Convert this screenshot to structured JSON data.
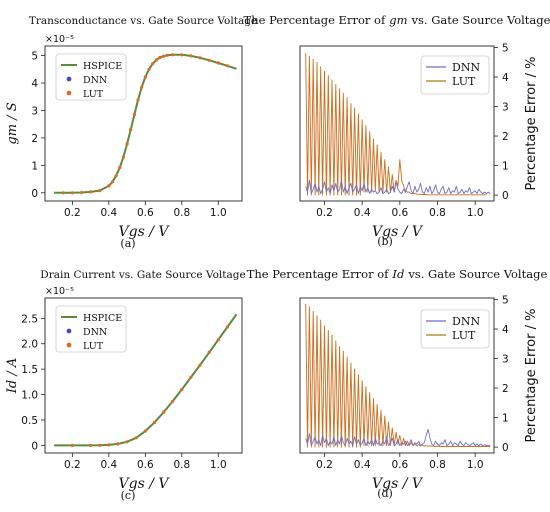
{
  "colors": {
    "hspice": "#5b8a3c",
    "dnn": "#4a4ab5",
    "lut": "#e06a22",
    "lut_line": "#a6801c",
    "dnn_line": "#6f6fc8"
  },
  "chart_data": [
    {
      "id": "a",
      "type": "line",
      "title": "Transconductance vs. Gate Source Voltage",
      "caption": "(a)",
      "xlabel": "Vgs / V",
      "ylabel": "gm / S",
      "exponent_label": "×10⁻⁵",
      "xlim": [
        0.05,
        1.13
      ],
      "ylim": [
        -0.3,
        5.35
      ],
      "xticks": [
        "0.2",
        "0.4",
        "0.6",
        "0.8",
        "1.0"
      ],
      "xtick_values": [
        0.2,
        0.4,
        0.6,
        0.8,
        1.0
      ],
      "yticks": [
        "0",
        "1",
        "2",
        "3",
        "4",
        "5"
      ],
      "ytick_values": [
        0,
        1,
        2,
        3,
        4,
        5
      ],
      "legend_position": "upper-left",
      "legend": [
        "HSPICE",
        "DNN",
        "LUT"
      ],
      "series": [
        {
          "name": "HSPICE",
          "x": [
            0.1,
            0.15,
            0.2,
            0.25,
            0.3,
            0.35,
            0.4,
            0.42,
            0.44,
            0.46,
            0.48,
            0.5,
            0.52,
            0.54,
            0.56,
            0.58,
            0.6,
            0.62,
            0.64,
            0.66,
            0.68,
            0.7,
            0.72,
            0.75,
            0.8,
            0.85,
            0.9,
            0.95,
            1.0,
            1.05,
            1.1
          ],
          "y": [
            0,
            0,
            0,
            0.01,
            0.03,
            0.08,
            0.25,
            0.4,
            0.62,
            0.92,
            1.3,
            1.78,
            2.3,
            2.85,
            3.38,
            3.85,
            4.22,
            4.5,
            4.7,
            4.84,
            4.93,
            4.98,
            5.01,
            5.03,
            5.03,
            4.99,
            4.92,
            4.83,
            4.73,
            4.63,
            4.52
          ]
        }
      ]
    },
    {
      "id": "b",
      "type": "line",
      "title_prefix": "The Percentage Error of",
      "title_symbol": "gm",
      "title_suffix": "vs. Gate Source Voltage",
      "caption": "(b)",
      "xlabel": "Vgs / V",
      "ylabel": "Percentage Error / %",
      "xlim": [
        0.07,
        1.1
      ],
      "ylim": [
        -0.2,
        5.05
      ],
      "xticks": [
        "0.2",
        "0.4",
        "0.6",
        "0.8",
        "1.0"
      ],
      "xtick_values": [
        0.2,
        0.4,
        0.6,
        0.8,
        1.0
      ],
      "yticks": [
        "0",
        "1",
        "2",
        "3",
        "4",
        "5"
      ],
      "ytick_values": [
        0,
        1,
        2,
        3,
        4,
        5
      ],
      "legend_position": "upper-right",
      "legend": [
        "DNN",
        "LUT"
      ],
      "series": [
        {
          "name": "LUT",
          "x_start": 0.1,
          "x_step": 0.01,
          "y": [
            4.8,
            0,
            4.7,
            0,
            4.6,
            0,
            4.5,
            0,
            4.35,
            0,
            4.2,
            0,
            4.05,
            0,
            3.9,
            0,
            3.75,
            0,
            3.6,
            0,
            3.45,
            0,
            3.3,
            0,
            3.1,
            0,
            2.95,
            0,
            2.75,
            0,
            2.55,
            0.1,
            2.35,
            0.1,
            2.15,
            0.1,
            1.9,
            0.15,
            1.7,
            0.1,
            1.45,
            0.1,
            1.2,
            0.1,
            0.95,
            0.1,
            0.7,
            0.1,
            0.5,
            0.3,
            1.2,
            0.5,
            0.3,
            0.15,
            0.1,
            0.1,
            0.05,
            0.05,
            0.05,
            0.03,
            0.03,
            0.03,
            0.02,
            0.02,
            0.02,
            0.01,
            0.01,
            0.01,
            0.01,
            0.01,
            0.01,
            0.01,
            0.01,
            0.01,
            0.01,
            0.01,
            0.01,
            0.01,
            0.01,
            0.01,
            0.01,
            0.01,
            0.01,
            0.01,
            0.01,
            0.01,
            0.01,
            0.01,
            0.01,
            0.01,
            0.01,
            0.01,
            0.01,
            0.01,
            0.01,
            0.01,
            0.01
          ]
        },
        {
          "name": "DNN",
          "x_start": 0.1,
          "x_step": 0.01,
          "y": [
            0.3,
            0.1,
            0.5,
            0.05,
            0.2,
            0.4,
            0.1,
            0.3,
            0.05,
            0.2,
            0.45,
            0.1,
            0.25,
            0.05,
            0.35,
            0.15,
            0.4,
            0.1,
            0.2,
            0.5,
            0.1,
            0.3,
            0.05,
            0.25,
            0.4,
            0.1,
            0.2,
            0.35,
            0.05,
            0.3,
            0.15,
            0.4,
            0.1,
            0.25,
            0.05,
            0.2,
            0.1,
            0.15,
            0.05,
            0.1,
            0.25,
            0.05,
            0.1,
            0.2,
            0.05,
            0.1,
            0.3,
            0.1,
            0.45,
            0.2,
            0.1,
            0.05,
            0.2,
            0.1,
            0.3,
            0.45,
            0.15,
            0.05,
            0.3,
            0.1,
            0.2,
            0.4,
            0.1,
            0.05,
            0.25,
            0.1,
            0.3,
            0.05,
            0.15,
            0.35,
            0.1,
            0.05,
            0.2,
            0.3,
            0.05,
            0.1,
            0.25,
            0.05,
            0.15,
            0.1,
            0.3,
            0.05,
            0.1,
            0.2,
            0.05,
            0.15,
            0.1,
            0.25,
            0.05,
            0.1,
            0.15,
            0.05,
            0.2,
            0.1,
            0.05,
            0.1,
            0.05,
            0.1,
            0.05
          ]
        }
      ]
    },
    {
      "id": "c",
      "type": "line",
      "title": "Drain Current vs. Gate Source Voltage",
      "caption": "(c)",
      "xlabel": "Vgs / V",
      "ylabel": "Id / A",
      "exponent_label": "×10⁻⁵",
      "xlim": [
        0.05,
        1.13
      ],
      "ylim": [
        -0.15,
        2.9
      ],
      "xticks": [
        "0.2",
        "0.4",
        "0.6",
        "0.8",
        "1.0"
      ],
      "xtick_values": [
        0.2,
        0.4,
        0.6,
        0.8,
        1.0
      ],
      "yticks": [
        "0",
        "0.5",
        "1.0",
        "1.5",
        "2.0",
        "2.5"
      ],
      "ytick_values": [
        0,
        0.5,
        1.0,
        1.5,
        2.0,
        2.5
      ],
      "legend_position": "upper-left",
      "legend": [
        "HSPICE",
        "DNN",
        "LUT"
      ],
      "series": [
        {
          "name": "HSPICE",
          "x": [
            0.1,
            0.2,
            0.3,
            0.35,
            0.4,
            0.45,
            0.5,
            0.55,
            0.6,
            0.65,
            0.7,
            0.75,
            0.8,
            0.85,
            0.9,
            0.95,
            1.0,
            1.05,
            1.1
          ],
          "y": [
            0,
            0,
            0,
            0.002,
            0.01,
            0.03,
            0.07,
            0.15,
            0.28,
            0.45,
            0.65,
            0.87,
            1.1,
            1.34,
            1.58,
            1.83,
            2.08,
            2.33,
            2.58
          ]
        }
      ]
    },
    {
      "id": "d",
      "type": "line",
      "title_prefix": "The Percentage Error of",
      "title_symbol": "Id",
      "title_suffix": "vs. Gate Source Voltage",
      "caption": "(d)",
      "xlabel": "Vgs / V",
      "ylabel": "Percentage Error / %",
      "xlim": [
        0.07,
        1.1
      ],
      "ylim": [
        -0.2,
        5.05
      ],
      "xticks": [
        "0.2",
        "0.4",
        "0.6",
        "0.8",
        "1.0"
      ],
      "xtick_values": [
        0.2,
        0.4,
        0.6,
        0.8,
        1.0
      ],
      "yticks": [
        "0",
        "1",
        "2",
        "3",
        "4",
        "5"
      ],
      "ytick_values": [
        0,
        1,
        2,
        3,
        4,
        5
      ],
      "legend_position": "upper-right",
      "legend": [
        "DNN",
        "LUT"
      ],
      "series": [
        {
          "name": "LUT",
          "x_start": 0.1,
          "x_step": 0.01,
          "y": [
            4.85,
            0,
            4.75,
            0,
            4.6,
            0,
            4.45,
            0,
            4.3,
            0,
            4.1,
            0,
            3.95,
            0,
            3.8,
            0,
            3.6,
            0,
            3.4,
            0,
            3.25,
            0,
            3.05,
            0,
            2.85,
            0,
            2.65,
            0,
            2.45,
            0,
            2.25,
            0.05,
            2.05,
            0.05,
            1.85,
            0.05,
            1.65,
            0.05,
            1.45,
            0.05,
            1.25,
            0.05,
            1.05,
            0.05,
            0.85,
            0.05,
            0.65,
            0.05,
            0.5,
            0.1,
            0.4,
            0.05,
            0.3,
            0.05,
            0.2,
            0.05,
            0.15,
            0.05,
            0.1,
            0.05,
            0.08,
            0.04,
            0.06,
            0.03,
            0.05,
            0.03,
            0.04,
            0.03,
            0.03,
            0.02,
            0.03,
            0.02,
            0.02,
            0.02,
            0.02,
            0.02,
            0.02,
            0.02,
            0.02,
            0.02,
            0.02,
            0.02,
            0.02,
            0.02,
            0.02,
            0.02,
            0.02,
            0.02,
            0.02,
            0.02,
            0.02,
            0.02,
            0.02,
            0.02,
            0.02,
            0.02,
            0.02,
            0.02,
            0.02
          ]
        },
        {
          "name": "DNN",
          "x_start": 0.1,
          "x_step": 0.01,
          "y": [
            0.3,
            0.1,
            0.45,
            0.05,
            0.2,
            0.35,
            0.1,
            0.25,
            0.05,
            0.4,
            0.15,
            0.3,
            0.05,
            0.2,
            0.1,
            0.35,
            0.05,
            0.25,
            0.1,
            0.4,
            0.15,
            0.05,
            0.3,
            0.1,
            0.2,
            0.05,
            0.35,
            0.1,
            0.25,
            0.05,
            0.15,
            0.3,
            0.05,
            0.2,
            0.1,
            0.25,
            0.05,
            0.3,
            0.1,
            0.15,
            0.05,
            0.2,
            0.1,
            0.35,
            0.05,
            0.15,
            0.3,
            0.05,
            0.1,
            0.25,
            0.05,
            0.15,
            0.1,
            0.2,
            0.05,
            0.1,
            0.25,
            0.05,
            0.15,
            0.1,
            0.2,
            0.05,
            0.1,
            0.15,
            0.4,
            0.6,
            0.3,
            0.1,
            0.05,
            0.2,
            0.1,
            0.05,
            0.15,
            0.1,
            0.25,
            0.05,
            0.1,
            0.2,
            0.05,
            0.15,
            0.1,
            0.05,
            0.2,
            0.1,
            0.05,
            0.15,
            0.1,
            0.05,
            0.1,
            0.15,
            0.05,
            0.1,
            0.05,
            0.1,
            0.05,
            0.08,
            0.05,
            0.05,
            0.05
          ]
        }
      ]
    }
  ]
}
